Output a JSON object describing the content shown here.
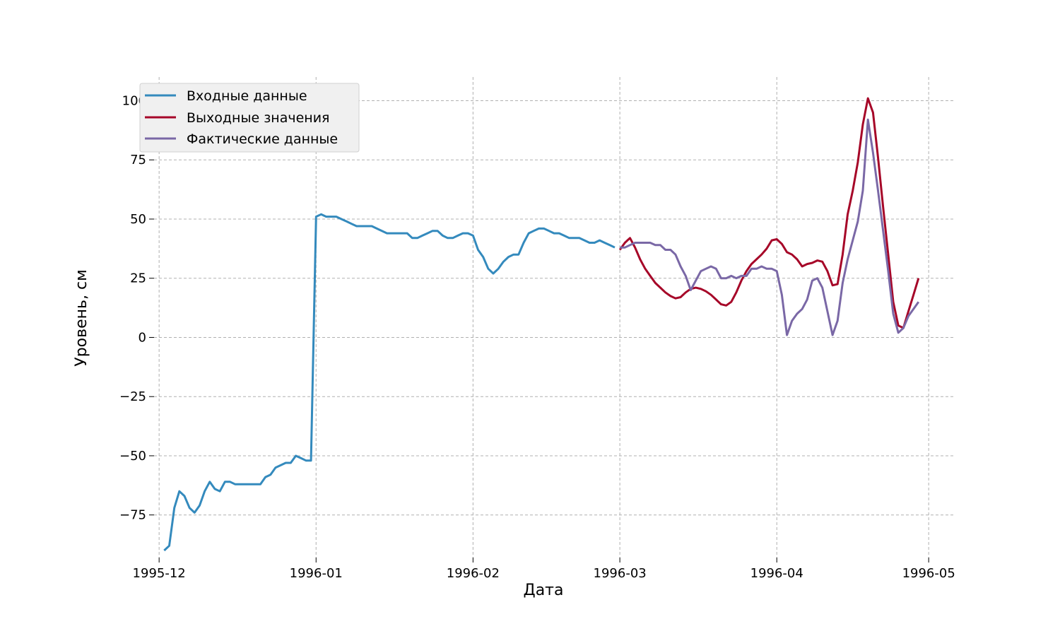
{
  "chart_data": {
    "type": "line",
    "title": "",
    "xlabel": "Дата",
    "ylabel": "Уровень, см",
    "grid": true,
    "legend_position": "top-left",
    "xlim": [
      "1995-11-30",
      "1996-05-06"
    ],
    "ylim": [
      -93,
      110
    ],
    "x_ticks": [
      {
        "date": "1995-12-01",
        "label": "1995-12"
      },
      {
        "date": "1996-01-01",
        "label": "1996-01"
      },
      {
        "date": "1996-02-01",
        "label": "1996-02"
      },
      {
        "date": "1996-03-01",
        "label": "1996-03"
      },
      {
        "date": "1996-04-01",
        "label": "1996-04"
      },
      {
        "date": "1996-05-01",
        "label": "1996-05"
      }
    ],
    "y_ticks": [
      {
        "value": 100,
        "label": "100"
      },
      {
        "value": 75,
        "label": "75"
      },
      {
        "value": 50,
        "label": "50"
      },
      {
        "value": 25,
        "label": "25"
      },
      {
        "value": 0,
        "label": "0"
      },
      {
        "value": -25,
        "label": "−25"
      },
      {
        "value": -50,
        "label": "−50"
      },
      {
        "value": -75,
        "label": "−75"
      }
    ],
    "series": [
      {
        "name": "Входные данные",
        "color": "#348ABD",
        "points": [
          [
            "1995-12-02",
            -90
          ],
          [
            "1995-12-03",
            -88
          ],
          [
            "1995-12-04",
            -72
          ],
          [
            "1995-12-05",
            -65
          ],
          [
            "1995-12-06",
            -67
          ],
          [
            "1995-12-07",
            -72
          ],
          [
            "1995-12-08",
            -74
          ],
          [
            "1995-12-09",
            -71
          ],
          [
            "1995-12-10",
            -65
          ],
          [
            "1995-12-11",
            -61
          ],
          [
            "1995-12-12",
            -64
          ],
          [
            "1995-12-13",
            -65
          ],
          [
            "1995-12-14",
            -61
          ],
          [
            "1995-12-15",
            -61
          ],
          [
            "1995-12-16",
            -62
          ],
          [
            "1995-12-17",
            -62
          ],
          [
            "1995-12-18",
            -62
          ],
          [
            "1995-12-19",
            -62
          ],
          [
            "1995-12-20",
            -62
          ],
          [
            "1995-12-21",
            -62
          ],
          [
            "1995-12-22",
            -59
          ],
          [
            "1995-12-23",
            -58
          ],
          [
            "1995-12-24",
            -55
          ],
          [
            "1995-12-25",
            -54
          ],
          [
            "1995-12-26",
            -53
          ],
          [
            "1995-12-27",
            -53
          ],
          [
            "1995-12-28",
            -50
          ],
          [
            "1995-12-29",
            -51
          ],
          [
            "1995-12-30",
            -52
          ],
          [
            "1995-12-31",
            -52
          ],
          [
            "1996-01-01",
            51
          ],
          [
            "1996-01-02",
            52
          ],
          [
            "1996-01-03",
            51
          ],
          [
            "1996-01-05",
            51
          ],
          [
            "1996-01-06",
            50
          ],
          [
            "1996-01-07",
            49
          ],
          [
            "1996-01-08",
            48
          ],
          [
            "1996-01-09",
            47
          ],
          [
            "1996-01-12",
            47
          ],
          [
            "1996-01-13",
            46
          ],
          [
            "1996-01-14",
            45
          ],
          [
            "1996-01-15",
            44
          ],
          [
            "1996-01-19",
            44
          ],
          [
            "1996-01-20",
            42
          ],
          [
            "1996-01-21",
            42
          ],
          [
            "1996-01-22",
            43
          ],
          [
            "1996-01-23",
            44
          ],
          [
            "1996-01-24",
            45
          ],
          [
            "1996-01-25",
            45
          ],
          [
            "1996-01-26",
            43
          ],
          [
            "1996-01-27",
            42
          ],
          [
            "1996-01-28",
            42
          ],
          [
            "1996-01-29",
            43
          ],
          [
            "1996-01-30",
            44
          ],
          [
            "1996-01-31",
            44
          ],
          [
            "1996-02-01",
            43
          ],
          [
            "1996-02-02",
            37
          ],
          [
            "1996-02-03",
            34
          ],
          [
            "1996-02-04",
            29
          ],
          [
            "1996-02-05",
            27
          ],
          [
            "1996-02-06",
            29
          ],
          [
            "1996-02-07",
            32
          ],
          [
            "1996-02-08",
            34
          ],
          [
            "1996-02-09",
            35
          ],
          [
            "1996-02-10",
            35
          ],
          [
            "1996-02-11",
            40
          ],
          [
            "1996-02-12",
            44
          ],
          [
            "1996-02-13",
            45
          ],
          [
            "1996-02-14",
            46
          ],
          [
            "1996-02-15",
            46
          ],
          [
            "1996-02-16",
            45
          ],
          [
            "1996-02-17",
            44
          ],
          [
            "1996-02-18",
            44
          ],
          [
            "1996-02-19",
            43
          ],
          [
            "1996-02-20",
            42
          ],
          [
            "1996-02-22",
            42
          ],
          [
            "1996-02-23",
            41
          ],
          [
            "1996-02-24",
            40
          ],
          [
            "1996-02-25",
            40
          ],
          [
            "1996-02-26",
            41
          ],
          [
            "1996-02-27",
            40
          ],
          [
            "1996-02-28",
            39
          ],
          [
            "1996-02-29",
            38
          ]
        ]
      },
      {
        "name": "Выходные значения",
        "color": "#A60628",
        "points": [
          [
            "1996-03-01",
            37
          ],
          [
            "1996-03-02",
            40
          ],
          [
            "1996-03-03",
            42
          ],
          [
            "1996-03-04",
            38
          ],
          [
            "1996-03-05",
            33
          ],
          [
            "1996-03-06",
            29
          ],
          [
            "1996-03-07",
            26
          ],
          [
            "1996-03-08",
            23
          ],
          [
            "1996-03-09",
            21
          ],
          [
            "1996-03-10",
            19
          ],
          [
            "1996-03-11",
            17.5
          ],
          [
            "1996-03-12",
            16.5
          ],
          [
            "1996-03-13",
            17
          ],
          [
            "1996-03-14",
            19
          ],
          [
            "1996-03-15",
            20.5
          ],
          [
            "1996-03-16",
            21
          ],
          [
            "1996-03-17",
            20.5
          ],
          [
            "1996-03-18",
            19.5
          ],
          [
            "1996-03-19",
            18
          ],
          [
            "1996-03-20",
            16
          ],
          [
            "1996-03-21",
            14
          ],
          [
            "1996-03-22",
            13.5
          ],
          [
            "1996-03-23",
            15
          ],
          [
            "1996-03-24",
            19
          ],
          [
            "1996-03-25",
            24
          ],
          [
            "1996-03-26",
            28
          ],
          [
            "1996-03-27",
            31
          ],
          [
            "1996-03-28",
            33
          ],
          [
            "1996-03-29",
            35
          ],
          [
            "1996-03-30",
            37.5
          ],
          [
            "1996-03-31",
            41
          ],
          [
            "1996-04-01",
            41.5
          ],
          [
            "1996-04-02",
            39.5
          ],
          [
            "1996-04-03",
            36
          ],
          [
            "1996-04-04",
            35
          ],
          [
            "1996-04-05",
            33
          ],
          [
            "1996-04-06",
            30
          ],
          [
            "1996-04-07",
            31
          ],
          [
            "1996-04-08",
            31.5
          ],
          [
            "1996-04-09",
            32.5
          ],
          [
            "1996-04-10",
            32
          ],
          [
            "1996-04-11",
            28
          ],
          [
            "1996-04-12",
            22
          ],
          [
            "1996-04-13",
            22.5
          ],
          [
            "1996-04-14",
            35
          ],
          [
            "1996-04-15",
            52
          ],
          [
            "1996-04-16",
            62
          ],
          [
            "1996-04-17",
            74
          ],
          [
            "1996-04-18",
            90
          ],
          [
            "1996-04-19",
            101
          ],
          [
            "1996-04-20",
            95
          ],
          [
            "1996-04-21",
            76
          ],
          [
            "1996-04-22",
            55
          ],
          [
            "1996-04-23",
            35
          ],
          [
            "1996-04-24",
            15
          ],
          [
            "1996-04-25",
            5
          ],
          [
            "1996-04-26",
            4
          ],
          [
            "1996-04-27",
            11
          ],
          [
            "1996-04-28",
            18
          ],
          [
            "1996-04-29",
            25
          ]
        ]
      },
      {
        "name": "Фактические данные",
        "color": "#7A68A6",
        "points": [
          [
            "1996-03-01",
            38
          ],
          [
            "1996-03-02",
            38
          ],
          [
            "1996-03-03",
            39
          ],
          [
            "1996-03-04",
            40
          ],
          [
            "1996-03-05",
            40
          ],
          [
            "1996-03-07",
            40
          ],
          [
            "1996-03-08",
            39
          ],
          [
            "1996-03-09",
            39
          ],
          [
            "1996-03-10",
            37
          ],
          [
            "1996-03-11",
            37
          ],
          [
            "1996-03-12",
            35
          ],
          [
            "1996-03-13",
            30
          ],
          [
            "1996-03-14",
            26
          ],
          [
            "1996-03-15",
            20
          ],
          [
            "1996-03-16",
            24
          ],
          [
            "1996-03-17",
            28
          ],
          [
            "1996-03-18",
            29
          ],
          [
            "1996-03-19",
            30
          ],
          [
            "1996-03-20",
            29
          ],
          [
            "1996-03-21",
            25
          ],
          [
            "1996-03-22",
            25
          ],
          [
            "1996-03-23",
            26
          ],
          [
            "1996-03-24",
            25
          ],
          [
            "1996-03-25",
            26
          ],
          [
            "1996-03-26",
            26
          ],
          [
            "1996-03-27",
            29
          ],
          [
            "1996-03-28",
            29
          ],
          [
            "1996-03-29",
            30
          ],
          [
            "1996-03-30",
            29
          ],
          [
            "1996-03-31",
            29
          ],
          [
            "1996-04-01",
            28
          ],
          [
            "1996-04-02",
            18
          ],
          [
            "1996-04-03",
            1
          ],
          [
            "1996-04-04",
            7
          ],
          [
            "1996-04-05",
            10
          ],
          [
            "1996-04-06",
            12
          ],
          [
            "1996-04-07",
            16
          ],
          [
            "1996-04-08",
            24
          ],
          [
            "1996-04-09",
            25
          ],
          [
            "1996-04-10",
            21
          ],
          [
            "1996-04-11",
            11
          ],
          [
            "1996-04-12",
            1
          ],
          [
            "1996-04-13",
            7
          ],
          [
            "1996-04-14",
            23
          ],
          [
            "1996-04-15",
            33
          ],
          [
            "1996-04-16",
            41
          ],
          [
            "1996-04-17",
            49
          ],
          [
            "1996-04-18",
            62
          ],
          [
            "1996-04-19",
            92
          ],
          [
            "1996-04-20",
            78
          ],
          [
            "1996-04-21",
            62
          ],
          [
            "1996-04-22",
            45
          ],
          [
            "1996-04-23",
            28
          ],
          [
            "1996-04-24",
            10
          ],
          [
            "1996-04-25",
            2
          ],
          [
            "1996-04-26",
            4
          ],
          [
            "1996-04-27",
            9
          ],
          [
            "1996-04-28",
            12
          ],
          [
            "1996-04-29",
            15
          ]
        ]
      }
    ]
  }
}
